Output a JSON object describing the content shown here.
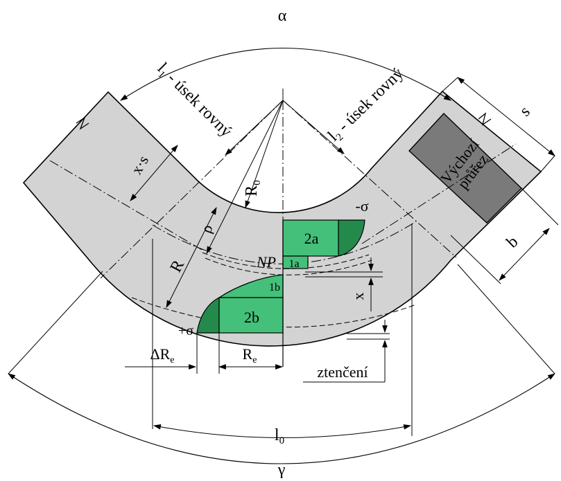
{
  "labels": {
    "alpha": "α",
    "gamma": "γ",
    "l1": "l",
    "l1_sub": "1",
    "l1_rest": " - úsek rovný",
    "l2": "l",
    "l2_sub": "2",
    "l2_rest": " - úsek rovný",
    "s": "s",
    "xs": "x·s",
    "rho": "ρ",
    "R0": "R",
    "R0_sub": "0",
    "R": "R",
    "vychozi_line1": "Výchozí",
    "vychozi_line2": "průřez",
    "b": "b",
    "minus_sigma": "-σ",
    "plus_sigma": "+σ",
    "zone_2a": "2a",
    "zone_1a": "1a",
    "zone_1b": "1b",
    "zone_2b": "2b",
    "NP": "NP",
    "x": "x",
    "dRe": "ΔR",
    "dRe_sub": "e",
    "Re": "R",
    "Re_sub": "e",
    "ztenceni": "ztenčení",
    "l0": "l",
    "l0_sub": "0"
  },
  "colors": {
    "tube": "#d3d3d3",
    "cross_section": "#7a7a7a",
    "zone_light": "#44c07a",
    "zone_dark": "#248a4c",
    "line": "#000000"
  }
}
